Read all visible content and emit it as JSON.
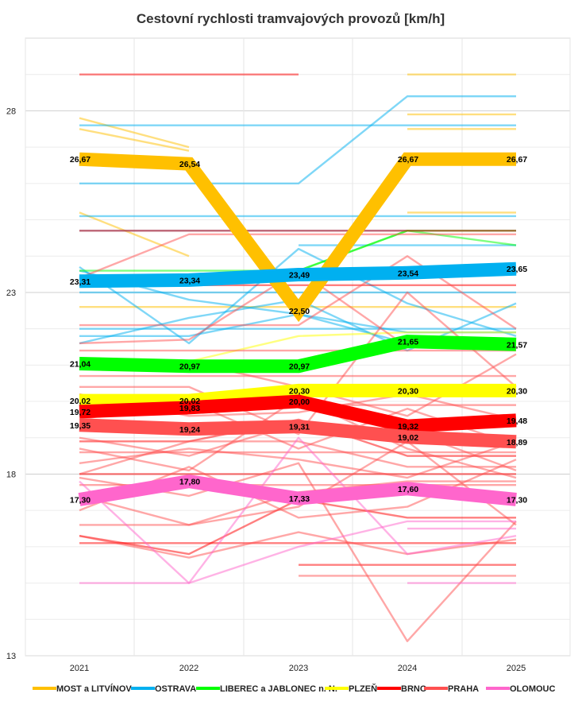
{
  "chart_data": {
    "type": "line",
    "title": "Cestovní rychlosti tramvajových provozů [km/h]",
    "x": [
      "2021",
      "2022",
      "2023",
      "2024",
      "2025"
    ],
    "ylim": [
      13,
      30
    ],
    "y_ticks": [
      "13",
      "18",
      "23",
      "28"
    ],
    "grid": true,
    "legend_position": "bottom",
    "series": [
      {
        "name": "MOST a LITVÍNOV",
        "color": "#FFC000",
        "values": [
          26.67,
          26.54,
          22.5,
          26.67,
          26.67
        ],
        "labels": [
          "26,67",
          "26,54",
          "22,50",
          "26,67",
          "26,67"
        ]
      },
      {
        "name": "OSTRAVA",
        "color": "#00B0F0",
        "values": [
          23.31,
          23.34,
          23.49,
          23.54,
          23.65
        ],
        "labels": [
          "23,31",
          "23,34",
          "23,49",
          "23,54",
          "23,65"
        ]
      },
      {
        "name": "LIBEREC a JABLONEC n. N.",
        "color": "#00FF00",
        "values": [
          21.04,
          20.97,
          20.97,
          21.65,
          21.57
        ],
        "labels": [
          "21,04",
          "20,97",
          "20,97",
          "21,65",
          "21,57"
        ]
      },
      {
        "name": "PLZEŇ",
        "color": "#FFFF00",
        "values": [
          20.02,
          20.02,
          20.3,
          20.3,
          20.3
        ],
        "labels": [
          "20,02",
          "20,02",
          "20,30",
          "20,30",
          "20,30"
        ]
      },
      {
        "name": "BRNO",
        "color": "#FF0000",
        "values": [
          19.72,
          19.83,
          20.0,
          19.32,
          19.48
        ],
        "labels": [
          "19,72",
          "19,83",
          "20,00",
          "19,32",
          "19,48"
        ]
      },
      {
        "name": "PRAHA",
        "color": "#FF5050",
        "values": [
          19.35,
          19.24,
          19.31,
          19.02,
          18.89
        ],
        "labels": [
          "19,35",
          "19,24",
          "19,31",
          "19,02",
          "18,89"
        ]
      },
      {
        "name": "OLOMOUC",
        "color": "#FF66CC",
        "values": [
          17.3,
          17.8,
          17.33,
          17.6,
          17.3
        ],
        "labels": [
          "17,30",
          "17,80",
          "17,33",
          "17,60",
          "17,30"
        ]
      }
    ],
    "background_lines": [
      {
        "color": "#FFC000",
        "values": [
          27.8,
          27.0,
          null,
          null,
          null
        ]
      },
      {
        "color": "#FFC000",
        "values": [
          27.5,
          26.9,
          null,
          null,
          null
        ]
      },
      {
        "color": "#FFC000",
        "values": [
          25.2,
          24.0,
          null,
          null,
          null
        ]
      },
      {
        "color": "#FFC000",
        "values": [
          22.6,
          22.6,
          22.6,
          22.6,
          22.6
        ]
      },
      {
        "color": "#FFC000",
        "values": [
          null,
          null,
          null,
          27.9,
          27.9
        ]
      },
      {
        "color": "#FFC000",
        "values": [
          null,
          null,
          null,
          27.5,
          27.5
        ]
      },
      {
        "color": "#FFC000",
        "values": [
          null,
          null,
          null,
          25.2,
          25.2
        ]
      },
      {
        "color": "#FFC000",
        "values": [
          null,
          null,
          null,
          29.0,
          29.0
        ]
      },
      {
        "color": "#00B0F0",
        "values": [
          27.6,
          27.6,
          27.6,
          27.6,
          27.6
        ]
      },
      {
        "color": "#00B0F0",
        "values": [
          26.0,
          26.0,
          26.0,
          28.4,
          28.4
        ]
      },
      {
        "color": "#00B0F0",
        "values": [
          25.1,
          25.1,
          25.1,
          25.1,
          25.1
        ]
      },
      {
        "color": "#00B0F0",
        "values": [
          24.7,
          24.7,
          24.7,
          24.7,
          24.7
        ]
      },
      {
        "color": "#00B0F0",
        "values": [
          23.7,
          21.6,
          24.2,
          22.7,
          21.8
        ]
      },
      {
        "color": "#00B0F0",
        "values": [
          23.0,
          23.0,
          23.0,
          23.0,
          23.0
        ]
      },
      {
        "color": "#00B0F0",
        "values": [
          22.0,
          22.0,
          22.0,
          22.0,
          22.0
        ]
      },
      {
        "color": "#00B0F0",
        "values": [
          21.6,
          22.3,
          22.8,
          21.4,
          22.7
        ]
      },
      {
        "color": "#00B0F0",
        "values": [
          23.6,
          22.8,
          22.4,
          21.9,
          21.9
        ]
      },
      {
        "color": "#00B0F0",
        "values": [
          21.8,
          21.8,
          22.4,
          21.6,
          21.6
        ]
      },
      {
        "color": "#00B0F0",
        "values": [
          null,
          null,
          24.3,
          24.3,
          24.3
        ]
      },
      {
        "color": "#00FF00",
        "values": [
          23.6,
          23.6,
          23.6,
          24.7,
          24.7
        ]
      },
      {
        "color": "#00FF00",
        "values": [
          null,
          null,
          23.6,
          24.7,
          24.3
        ]
      },
      {
        "color": "#FFFF00",
        "values": [
          null,
          21.1,
          21.8,
          21.9,
          21.9
        ]
      },
      {
        "color": "#FF0000",
        "values": [
          29.0,
          29.0,
          29.0,
          null,
          null
        ]
      },
      {
        "color": "#FF0000",
        "values": [
          24.7,
          24.7,
          24.7,
          24.7,
          24.7
        ]
      },
      {
        "color": "#FF0000",
        "values": [
          23.2,
          23.2,
          23.2,
          23.2,
          23.2
        ]
      },
      {
        "color": "#FF0000",
        "values": [
          18.0,
          18.0,
          18.0,
          18.0,
          18.0
        ]
      },
      {
        "color": "#FF0000",
        "values": [
          16.1,
          16.1,
          16.1,
          16.1,
          16.1
        ]
      },
      {
        "color": "#FF0000",
        "values": [
          16.3,
          15.8,
          17.3,
          16.8,
          16.8
        ]
      },
      {
        "color": "#FF0000",
        "values": [
          null,
          null,
          15.5,
          15.5,
          15.5
        ]
      },
      {
        "color": "#FF0000",
        "values": [
          18.9,
          18.9,
          19.5,
          18.5,
          18.5
        ]
      },
      {
        "color": "#FF5050",
        "values": [
          23.4,
          24.6,
          24.6,
          24.6,
          24.6
        ]
      },
      {
        "color": "#FF5050",
        "values": [
          22.1,
          22.1,
          22.1,
          24.0,
          22.0
        ]
      },
      {
        "color": "#FF5050",
        "values": [
          21.6,
          21.7,
          23.6,
          21.5,
          21.5
        ]
      },
      {
        "color": "#FF5050",
        "values": [
          21.4,
          21.4,
          21.4,
          21.4,
          21.4
        ]
      },
      {
        "color": "#FF5050",
        "values": [
          21.1,
          21.1,
          20.4,
          19.6,
          21.3
        ]
      },
      {
        "color": "#FF5050",
        "values": [
          20.7,
          20.7,
          20.7,
          20.7,
          20.7
        ]
      },
      {
        "color": "#FF5050",
        "values": [
          20.4,
          20.4,
          19.1,
          23.0,
          20.4
        ]
      },
      {
        "color": "#FF5050",
        "values": [
          19.9,
          19.9,
          19.9,
          19.9,
          19.9
        ]
      },
      {
        "color": "#FF5050",
        "values": [
          18.6,
          18.6,
          18.6,
          18.6,
          18.6
        ]
      },
      {
        "color": "#FF5050",
        "values": [
          18.3,
          18.7,
          18.4,
          17.9,
          18.9
        ]
      },
      {
        "color": "#FF5050",
        "values": [
          17.9,
          17.4,
          18.3,
          13.4,
          16.7
        ]
      },
      {
        "color": "#FF5050",
        "values": [
          17.7,
          17.7,
          17.7,
          17.7,
          17.7
        ]
      },
      {
        "color": "#FF5050",
        "values": [
          17.4,
          16.6,
          17.1,
          18.9,
          16.6
        ]
      },
      {
        "color": "#FF5050",
        "values": [
          17.0,
          18.2,
          16.8,
          17.1,
          18.4
        ]
      },
      {
        "color": "#FF5050",
        "values": [
          16.6,
          16.6,
          17.5,
          17.8,
          17.8
        ]
      },
      {
        "color": "#FF5050",
        "values": [
          16.3,
          15.7,
          16.4,
          15.8,
          16.2
        ]
      },
      {
        "color": "#FF5050",
        "values": [
          19.0,
          18.5,
          19.4,
          19.2,
          18.1
        ]
      },
      {
        "color": "#FF5050",
        "values": [
          18.7,
          18.1,
          20.1,
          18.7,
          17.9
        ]
      },
      {
        "color": "#FF5050",
        "values": [
          20.2,
          19.6,
          19.7,
          20.2,
          19.5
        ]
      },
      {
        "color": "#FF5050",
        "values": [
          18.0,
          18.9,
          18.9,
          18.2,
          18.2
        ]
      },
      {
        "color": "#FF5050",
        "values": [
          19.5,
          20.0,
          18.7,
          19.8,
          18.8
        ]
      },
      {
        "color": "#FF5050",
        "values": [
          null,
          null,
          15.2,
          15.2,
          15.2
        ]
      },
      {
        "color": "#FF66CC",
        "values": [
          15.0,
          15.0,
          19.0,
          15.8,
          16.3
        ]
      },
      {
        "color": "#FF66CC",
        "values": [
          17.8,
          15.0,
          16.0,
          16.7,
          16.7
        ]
      },
      {
        "color": "#FF66CC",
        "values": [
          null,
          null,
          null,
          15.0,
          15.0
        ]
      },
      {
        "color": "#FF66CC",
        "values": [
          null,
          null,
          null,
          16.5,
          16.5
        ]
      }
    ]
  }
}
